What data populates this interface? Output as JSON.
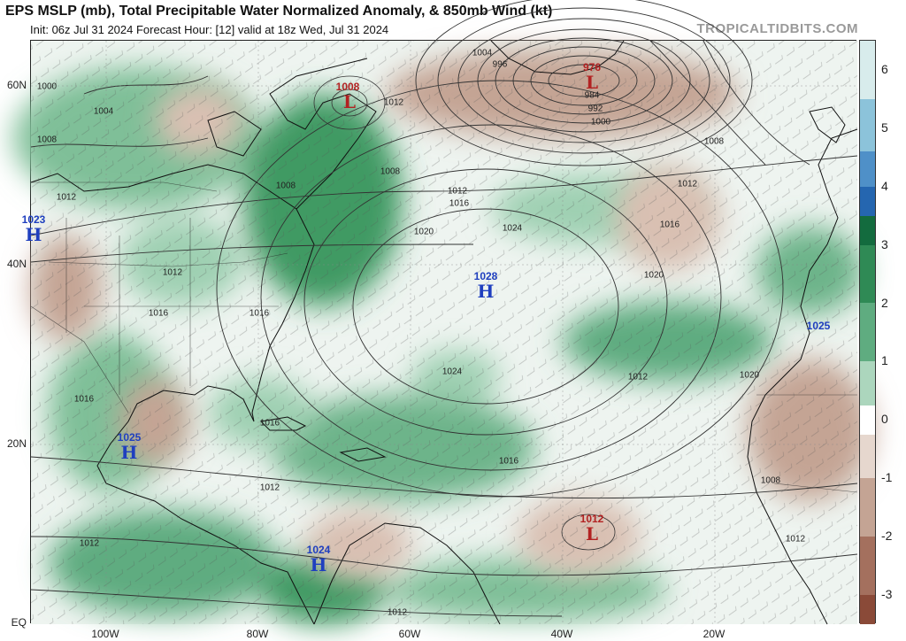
{
  "header": {
    "title": "EPS MSLP (mb), Total Precipitable Water Normalized Anomaly, & 850mb Wind (kt)",
    "subtitle": "Init: 06z Jul 31 2024   Forecast Hour: [12]   valid at 18z Wed, Jul 31 2024",
    "brand": "TROPICALTIDBITS.COM"
  },
  "axes": {
    "lat_labels": [
      "60N",
      "40N",
      "20N",
      "EQ"
    ],
    "lon_labels": [
      "100W",
      "80W",
      "60W",
      "40W",
      "20W"
    ]
  },
  "colorbar": {
    "ticks": [
      "6",
      "5",
      "4",
      "3",
      "2",
      "1",
      "0",
      "-1",
      "-2",
      "-3"
    ],
    "range": [
      -3.5,
      6.5
    ],
    "segments": [
      {
        "from": 6.5,
        "to": 5.5,
        "color": "#d8ecec"
      },
      {
        "from": 5.5,
        "to": 4.6,
        "color": "#8cc3da"
      },
      {
        "from": 4.6,
        "to": 4.0,
        "color": "#4f90c8"
      },
      {
        "from": 4.0,
        "to": 3.5,
        "color": "#2566b0"
      },
      {
        "from": 3.5,
        "to": 3.0,
        "color": "#136b3e"
      },
      {
        "from": 3.0,
        "to": 2.0,
        "color": "#2f8a55"
      },
      {
        "from": 2.0,
        "to": 1.0,
        "color": "#5fac80"
      },
      {
        "from": 1.0,
        "to": 0.25,
        "color": "#acd6bd"
      },
      {
        "from": 0.25,
        "to": -0.25,
        "color": "#ffffff"
      },
      {
        "from": -0.25,
        "to": -1.0,
        "color": "#e6d7ce"
      },
      {
        "from": -1.0,
        "to": -2.0,
        "color": "#c4a494"
      },
      {
        "from": -2.0,
        "to": -3.0,
        "color": "#a4705e"
      },
      {
        "from": -3.0,
        "to": -3.5,
        "color": "#8a4a38"
      }
    ]
  },
  "systems": [
    {
      "type": "L",
      "value": "976",
      "color": "#b22222"
    },
    {
      "type": "L",
      "value": "1008",
      "color": "#b22222"
    },
    {
      "type": "H",
      "value": "1023",
      "color": "#1f3fbf"
    },
    {
      "type": "H",
      "value": "1028",
      "color": "#1f3fbf"
    },
    {
      "type": "H",
      "value": "1025",
      "color": "#1f3fbf"
    },
    {
      "type": "H",
      "value": "1025",
      "color": "#1f3fbf"
    },
    {
      "type": "L",
      "value": "1012",
      "color": "#b22222"
    },
    {
      "type": "H",
      "value": "1024",
      "color": "#1f3fbf"
    }
  ],
  "isobar_labels": [
    "1000",
    "1004",
    "1008",
    "1012",
    "1016",
    "1020",
    "1024",
    "1012",
    "1016",
    "1020",
    "1024",
    "1008",
    "1012",
    "1016",
    "1012",
    "1016",
    "1020",
    "1000",
    "992",
    "984",
    "996",
    "1004",
    "1008",
    "1012",
    "1016",
    "1008",
    "1012",
    "1016",
    "1012",
    "1012",
    "1016",
    "1008",
    "1012",
    "1012"
  ],
  "colors": {
    "ocean_neutral": "#f2f6f3",
    "moist": "#5fac80",
    "very_moist": "#2f8a55",
    "dry": "#c4a494",
    "isobar": "#333333",
    "coast": "#111111"
  }
}
